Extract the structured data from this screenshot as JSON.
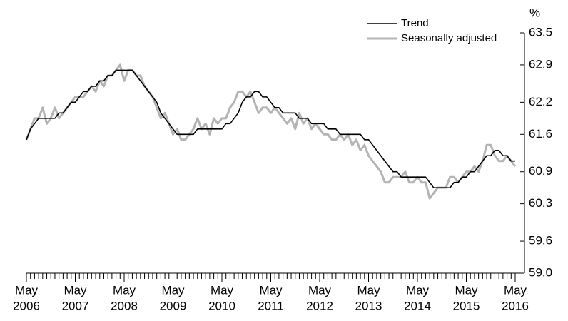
{
  "chart_data": {
    "type": "line",
    "y_unit": "%",
    "x": [
      "2006-05",
      "2006-06",
      "2006-07",
      "2006-08",
      "2006-09",
      "2006-10",
      "2006-11",
      "2006-12",
      "2007-01",
      "2007-02",
      "2007-03",
      "2007-04",
      "2007-05",
      "2007-06",
      "2007-07",
      "2007-08",
      "2007-09",
      "2007-10",
      "2007-11",
      "2007-12",
      "2008-01",
      "2008-02",
      "2008-03",
      "2008-04",
      "2008-05",
      "2008-06",
      "2008-07",
      "2008-08",
      "2008-09",
      "2008-10",
      "2008-11",
      "2008-12",
      "2009-01",
      "2009-02",
      "2009-03",
      "2009-04",
      "2009-05",
      "2009-06",
      "2009-07",
      "2009-08",
      "2009-09",
      "2009-10",
      "2009-11",
      "2009-12",
      "2010-01",
      "2010-02",
      "2010-03",
      "2010-04",
      "2010-05",
      "2010-06",
      "2010-07",
      "2010-08",
      "2010-09",
      "2010-10",
      "2010-11",
      "2010-12",
      "2011-01",
      "2011-02",
      "2011-03",
      "2011-04",
      "2011-05",
      "2011-06",
      "2011-07",
      "2011-08",
      "2011-09",
      "2011-10",
      "2011-11",
      "2011-12",
      "2012-01",
      "2012-02",
      "2012-03",
      "2012-04",
      "2012-05",
      "2012-06",
      "2012-07",
      "2012-08",
      "2012-09",
      "2012-10",
      "2012-11",
      "2012-12",
      "2013-01",
      "2013-02",
      "2013-03",
      "2013-04",
      "2013-05",
      "2013-06",
      "2013-07",
      "2013-08",
      "2013-09",
      "2013-10",
      "2013-11",
      "2013-12",
      "2014-01",
      "2014-02",
      "2014-03",
      "2014-04",
      "2014-05",
      "2014-06",
      "2014-07",
      "2014-08",
      "2014-09",
      "2014-10",
      "2014-11",
      "2014-12",
      "2015-01",
      "2015-02",
      "2015-03",
      "2015-04",
      "2015-05",
      "2015-06",
      "2015-07",
      "2015-08",
      "2015-09",
      "2015-10",
      "2015-11",
      "2015-12",
      "2016-01",
      "2016-02",
      "2016-03",
      "2016-04",
      "2016-05"
    ],
    "series": [
      {
        "name": "Trend",
        "color": "#000000",
        "width": 1.6,
        "values": [
          61.5,
          61.7,
          61.8,
          61.9,
          61.9,
          61.9,
          61.9,
          61.9,
          62.0,
          62.0,
          62.1,
          62.2,
          62.2,
          62.3,
          62.4,
          62.4,
          62.5,
          62.5,
          62.6,
          62.6,
          62.7,
          62.7,
          62.8,
          62.8,
          62.8,
          62.8,
          62.8,
          62.7,
          62.6,
          62.5,
          62.4,
          62.3,
          62.2,
          62.0,
          61.9,
          61.8,
          61.7,
          61.6,
          61.6,
          61.6,
          61.6,
          61.6,
          61.7,
          61.7,
          61.7,
          61.7,
          61.7,
          61.7,
          61.7,
          61.8,
          61.8,
          61.9,
          62.0,
          62.2,
          62.3,
          62.3,
          62.4,
          62.4,
          62.3,
          62.3,
          62.2,
          62.1,
          62.1,
          62.0,
          62.0,
          62.0,
          62.0,
          61.9,
          61.9,
          61.9,
          61.8,
          61.8,
          61.8,
          61.8,
          61.7,
          61.7,
          61.7,
          61.6,
          61.6,
          61.6,
          61.6,
          61.6,
          61.6,
          61.5,
          61.5,
          61.4,
          61.3,
          61.2,
          61.1,
          61.0,
          60.9,
          60.9,
          60.8,
          60.8,
          60.8,
          60.8,
          60.8,
          60.8,
          60.8,
          60.7,
          60.6,
          60.6,
          60.6,
          60.6,
          60.6,
          60.7,
          60.7,
          60.8,
          60.8,
          60.9,
          60.9,
          61.0,
          61.1,
          61.2,
          61.2,
          61.3,
          61.3,
          61.2,
          61.2,
          61.1,
          61.1
        ]
      },
      {
        "name": "Seasonally adjusted",
        "color": "#b4b4b4",
        "width": 3,
        "values": [
          61.5,
          61.7,
          61.9,
          61.9,
          62.1,
          61.8,
          61.9,
          62.1,
          61.9,
          62.0,
          62.1,
          62.2,
          62.3,
          62.3,
          62.3,
          62.4,
          62.5,
          62.4,
          62.6,
          62.5,
          62.7,
          62.7,
          62.8,
          62.9,
          62.6,
          62.8,
          62.8,
          62.7,
          62.7,
          62.5,
          62.4,
          62.3,
          62.1,
          61.9,
          62.0,
          61.8,
          61.6,
          61.7,
          61.5,
          61.5,
          61.6,
          61.7,
          61.9,
          61.7,
          61.8,
          61.6,
          61.9,
          61.8,
          61.9,
          61.9,
          62.1,
          62.2,
          62.4,
          62.4,
          62.3,
          62.4,
          62.2,
          62.0,
          62.1,
          62.1,
          62.0,
          62.1,
          62.0,
          61.9,
          61.8,
          61.9,
          61.7,
          62.0,
          61.8,
          61.9,
          61.7,
          61.8,
          61.7,
          61.6,
          61.6,
          61.5,
          61.5,
          61.6,
          61.5,
          61.6,
          61.4,
          61.5,
          61.3,
          61.4,
          61.2,
          61.1,
          61.0,
          60.9,
          60.7,
          60.7,
          60.8,
          60.8,
          60.8,
          60.9,
          60.7,
          60.7,
          60.8,
          60.7,
          60.7,
          60.4,
          60.5,
          60.6,
          60.6,
          60.6,
          60.8,
          60.8,
          60.7,
          60.8,
          60.9,
          60.9,
          61.0,
          60.9,
          61.1,
          61.4,
          61.4,
          61.2,
          61.1,
          61.1,
          61.2,
          61.1,
          61.0
        ]
      }
    ],
    "ylim": [
      59,
      63.5
    ],
    "yticks": [
      {
        "value": 59,
        "label": "59.0"
      },
      59.6,
      60.3,
      60.9,
      61.6,
      62.2,
      62.9,
      63.5
    ],
    "xticks": [
      {
        "value": "2006-05",
        "label": [
          "May",
          "2006"
        ]
      },
      {
        "value": "2007-05",
        "label": [
          "May",
          "2007"
        ]
      },
      {
        "value": "2008-05",
        "label": [
          "May",
          "2008"
        ]
      },
      {
        "value": "2009-05",
        "label": [
          "May",
          "2009"
        ]
      },
      {
        "value": "2010-05",
        "label": [
          "May",
          "2010"
        ]
      },
      {
        "value": "2011-05",
        "label": [
          "May",
          "2011"
        ]
      },
      {
        "value": "2012-05",
        "label": [
          "May",
          "2012"
        ]
      },
      {
        "value": "2013-05",
        "label": [
          "May",
          "2013"
        ]
      },
      {
        "value": "2014-05",
        "label": [
          "May",
          "2014"
        ]
      },
      {
        "value": "2015-05",
        "label": [
          "May",
          "2015"
        ]
      },
      {
        "value": "2016-05",
        "label": [
          "May",
          "2016"
        ]
      }
    ],
    "y_axis_side": "right",
    "grid": false,
    "legend": "top-right"
  }
}
